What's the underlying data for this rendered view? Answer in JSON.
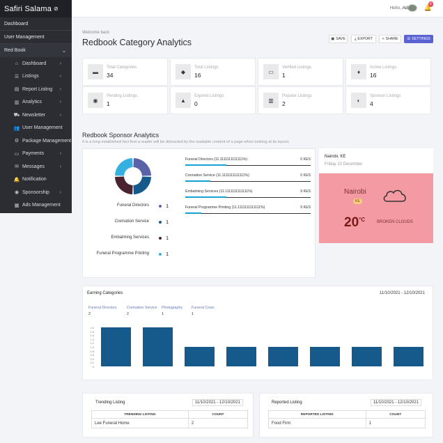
{
  "app": {
    "brand": "Safiri Salama"
  },
  "sidebar": {
    "dashboard": "Dashboard",
    "user_management": "User Management",
    "red_book": "Red Book",
    "items": [
      {
        "label": "Dashboard",
        "icon": "home-icon",
        "arrow": true
      },
      {
        "label": "Listings",
        "icon": "list-icon",
        "arrow": true
      },
      {
        "label": "Report Listing",
        "icon": "file-icon",
        "arrow": true
      },
      {
        "label": "Analytics",
        "icon": "chart-icon",
        "arrow": true
      },
      {
        "label": "Newsletter",
        "icon": "truck-icon",
        "arrow": true
      },
      {
        "label": "User Management",
        "icon": "users-icon",
        "arrow": false
      },
      {
        "label": "Package Management",
        "icon": "user-cog-icon",
        "arrow": false
      },
      {
        "label": "Payments",
        "icon": "card-icon",
        "arrow": true
      },
      {
        "label": "Messages",
        "icon": "messages-icon",
        "arrow": true
      },
      {
        "label": "Notification",
        "icon": "bell-icon",
        "arrow": false
      },
      {
        "label": "Sponsorship",
        "icon": "sponsor-icon",
        "arrow": true
      },
      {
        "label": "Ads Management",
        "icon": "ads-icon",
        "arrow": false
      }
    ]
  },
  "topbar": {
    "hello": "Hello,",
    "user": "Admin",
    "notif_count": "0"
  },
  "header": {
    "welcome": "Welcome back",
    "title": "Redbook Category Analytics"
  },
  "toolbar": {
    "save": "SAVE",
    "export": "EXPORT",
    "share": "SHARE",
    "settings": "SETTINGS"
  },
  "stats": [
    {
      "label": "Total Categories",
      "value": "34"
    },
    {
      "label": "Total Listings",
      "value": "16"
    },
    {
      "label": "Verified Listings",
      "value": "1"
    },
    {
      "label": "Active Listings",
      "value": "16"
    },
    {
      "label": "Pending Listings",
      "value": "1"
    },
    {
      "label": "Expired Listings",
      "value": "0"
    },
    {
      "label": "Popular Listings",
      "value": "2"
    },
    {
      "label": "Sponsor Listings",
      "value": "4"
    }
  ],
  "sponsor": {
    "title": "Redbook Sponsor Analytics",
    "subtitle": "It is a long established fact that a reader will be distracted by the readable content of a page when looking at its layout.",
    "legend": [
      {
        "name": "Funeral Directors",
        "count": "1",
        "color": "#5b63a8"
      },
      {
        "name": "Cremation Service",
        "count": "1",
        "color": "#155a8a"
      },
      {
        "name": "Embalming Services",
        "count": "1",
        "color": "#4a2230"
      },
      {
        "name": "Funeral Programme Printing",
        "count": "1",
        "color": "#36b0e0"
      }
    ],
    "bars": [
      {
        "label": "Funeral Directors (11.1111111111111%)",
        "value": "0 KES",
        "fill": 0.33
      },
      {
        "label": "Cremation Service (11.1111111111111%)",
        "value": "0 KES",
        "fill": 0.2
      },
      {
        "label": "Embalming Services (11.1111111111111%)",
        "value": "9 KES",
        "fill": 0.33
      },
      {
        "label": "Funeral Programme Printing (11.1111111111111%)",
        "value": "9 KES",
        "fill": 0.13
      }
    ]
  },
  "weather": {
    "location": "Nairobi, KE",
    "date": "Friday 10 December",
    "city": "Nairobi",
    "country": "KE",
    "temp": "20",
    "unit": "°C",
    "desc": "BROKEN CLOUDS"
  },
  "earning": {
    "title": "Earning Categories",
    "date_range": "11/10/2021 - 12/10/2021",
    "categories": [
      {
        "name": "Funeral Directors",
        "count": "2"
      },
      {
        "name": "Cremation Service",
        "count": "2"
      },
      {
        "name": "Photography",
        "count": "1"
      },
      {
        "name": "Funeral Cows",
        "count": "1"
      }
    ]
  },
  "chart_data": {
    "type": "bar",
    "values": [
      2,
      2,
      1,
      1,
      1,
      1,
      1,
      1
    ],
    "ylim": [
      0,
      2
    ],
    "yticks": [
      "2.0",
      "1.8",
      "1.6",
      "1.4",
      "1.2",
      "1.0",
      "0.8",
      "0.6",
      "0.4",
      "0.2",
      "0"
    ],
    "color": "#155a8a"
  },
  "trending": {
    "title": "Trending Listing",
    "date_range": "11/10/2021 - 12/10/2021",
    "headers": [
      "TRENDING LISTING",
      "COUNT"
    ],
    "rows": [
      [
        "Lee Funeral Home",
        "2"
      ]
    ]
  },
  "reported": {
    "title": "Reported Listing",
    "date_range": "11/10/2021 - 12/10/2021",
    "headers": [
      "REPORTED LISTING",
      "COUNT"
    ],
    "rows": [
      [
        "Food Firm",
        "1"
      ]
    ]
  }
}
